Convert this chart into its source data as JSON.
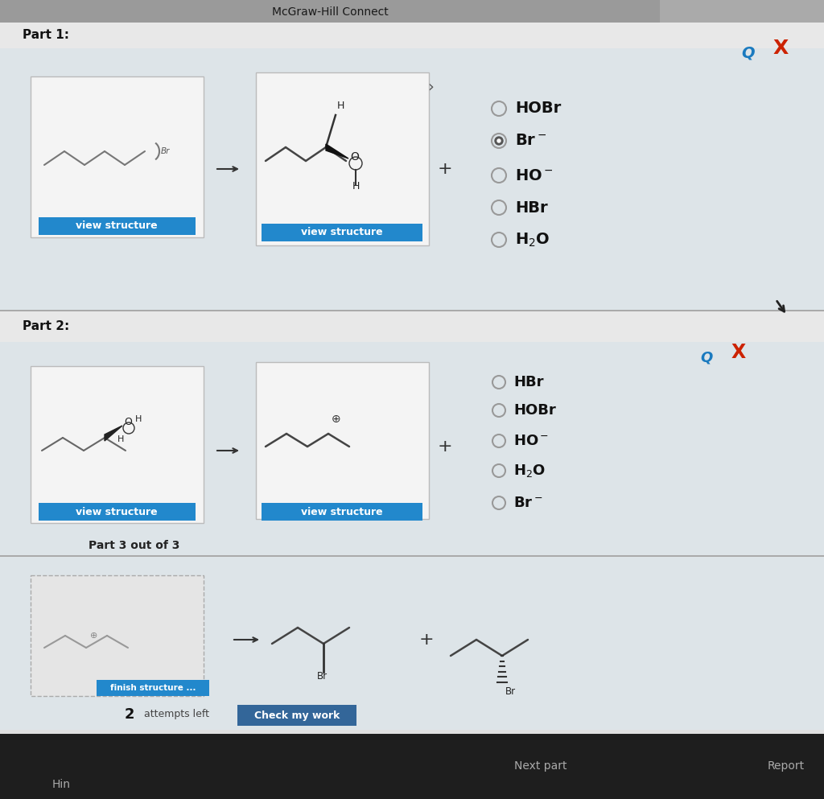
{
  "title": "McGraw-Hill Connect",
  "title_bar_color": "#9a9a9a",
  "part_header_color": "#c8c8c8",
  "content_bg_color": "#e8e8e8",
  "page_bg_color": "#e0e0e0",
  "white_box_color": "#f4f4f4",
  "part1_label": "Part 1:",
  "part2_label": "Part 2:",
  "part3_label": "Part 3 out of 3",
  "view_structure_btn_color": "#2288cc",
  "view_structure_text": "view structure",
  "finish_structure_text": "finish structure ...",
  "check_work_text": "Check my work",
  "check_work_color": "#336699",
  "next_part_text": "Next part",
  "report_text": "Report",
  "hint_text": "Hin",
  "attempts_label": "2",
  "attempts_rest": " attempts left",
  "part1_options": [
    "HOBr",
    "Br$^-$",
    "HO$^-$",
    "HBr",
    "H$_2$O"
  ],
  "part1_selected": 1,
  "part2_options": [
    "HBr",
    "HOBr",
    "HO$^-$",
    "H$_2$O",
    "Br$^-$"
  ],
  "bottom_bar_color": "#f0f0f0",
  "bottom_text_color": "#555555",
  "x_color": "#cc2200",
  "search_color": "#1a7abf",
  "dark_bottom_color": "#2a2a2a",
  "line_color": "#555555"
}
